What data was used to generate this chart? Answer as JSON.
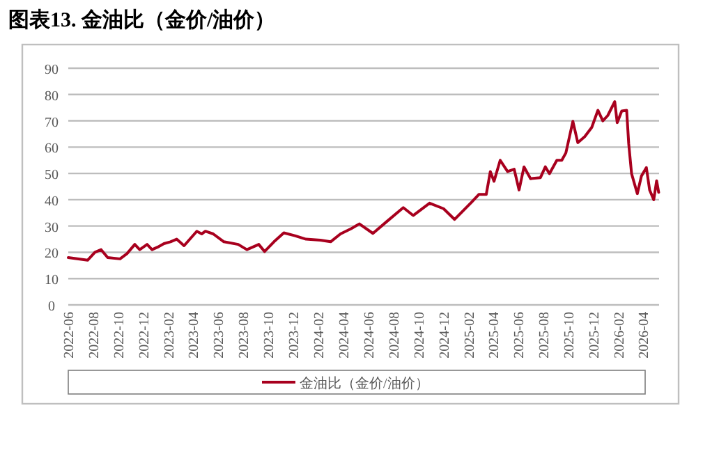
{
  "chart_data": {
    "type": "line",
    "title": "图表13.   金油比（金价/油价）",
    "x": [
      "2022-06-01",
      "2022-07-18",
      "2022-08-05",
      "2022-08-20",
      "2022-09-05",
      "2022-10-05",
      "2022-10-22",
      "2022-11-10",
      "2022-11-22",
      "2022-12-10",
      "2022-12-22",
      "2023-01-05",
      "2023-01-20",
      "2023-02-05",
      "2023-02-20",
      "2023-03-10",
      "2023-04-10",
      "2023-04-22",
      "2023-05-01",
      "2023-05-20",
      "2023-06-15",
      "2023-07-20",
      "2023-08-10",
      "2023-09-08",
      "2023-09-22",
      "2023-10-15",
      "2023-11-08",
      "2023-12-05",
      "2024-01-01",
      "2024-02-05",
      "2024-03-01",
      "2024-03-25",
      "2024-04-20",
      "2024-05-10",
      "2024-06-12",
      "2024-07-15",
      "2024-08-25",
      "2024-09-18",
      "2024-10-28",
      "2024-12-01",
      "2024-12-28",
      "2025-02-07",
      "2025-02-25",
      "2025-03-15",
      "2025-03-25",
      "2025-04-03",
      "2025-04-18",
      "2025-05-06",
      "2025-05-22",
      "2025-06-03",
      "2025-06-15",
      "2025-07-01",
      "2025-07-25",
      "2025-08-06",
      "2025-08-16",
      "2025-09-03",
      "2025-09-15",
      "2025-09-25",
      "2025-10-12",
      "2025-10-24",
      "2025-11-10",
      "2025-11-27",
      "2025-12-12",
      "2025-12-24",
      "2026-01-05",
      "2026-01-22",
      "2026-01-28",
      "2026-02-08",
      "2026-02-20",
      "2026-02-25",
      "2026-03-04",
      "2026-03-18",
      "2026-03-28",
      "2026-04-09",
      "2026-04-17",
      "2026-04-27",
      "2026-05-04",
      "2026-05-09"
    ],
    "series": [
      {
        "name": "金油比（金价/油价）",
        "color": "#a8001e",
        "values": [
          18,
          17,
          20,
          21,
          18,
          17.5,
          19.5,
          23,
          21,
          23,
          21,
          22,
          23.3,
          24,
          25,
          22.5,
          28,
          27,
          28,
          27,
          24,
          23,
          21,
          23,
          20.3,
          24,
          27.4,
          26.3,
          25,
          24.6,
          24,
          27,
          29,
          30.8,
          27.2,
          31.6,
          37,
          34,
          38.7,
          36.6,
          32.5,
          39,
          42,
          42,
          50.7,
          47,
          55,
          50.7,
          51.6,
          43.7,
          52.5,
          48,
          48.4,
          52.5,
          49.9,
          55,
          55,
          57.8,
          69.8,
          61.7,
          64,
          67.5,
          74,
          70,
          72,
          77.3,
          69.3,
          73.7,
          74,
          61.3,
          49.9,
          42.3,
          49,
          52.2,
          43.7,
          40,
          47.2,
          42.8
        ]
      }
    ],
    "xlim": [
      "2022-06-01",
      "2026-05-10"
    ],
    "xticks": [
      "2022-06",
      "2022-08",
      "2022-10",
      "2022-12",
      "2023-02",
      "2023-04",
      "2023-06",
      "2023-08",
      "2023-10",
      "2023-12",
      "2024-02",
      "2024-04",
      "2024-06",
      "2024-08",
      "2024-10",
      "2024-12",
      "2025-02",
      "2025-04",
      "2025-06",
      "2025-08",
      "2025-10",
      "2025-12",
      "2026-02",
      "2026-04"
    ],
    "ylim": [
      0,
      90
    ],
    "yticks": [
      0,
      10,
      20,
      30,
      40,
      50,
      60,
      70,
      80,
      90
    ],
    "grid": "y",
    "legend": "bottom",
    "marker": "none",
    "line_style": "solid"
  }
}
